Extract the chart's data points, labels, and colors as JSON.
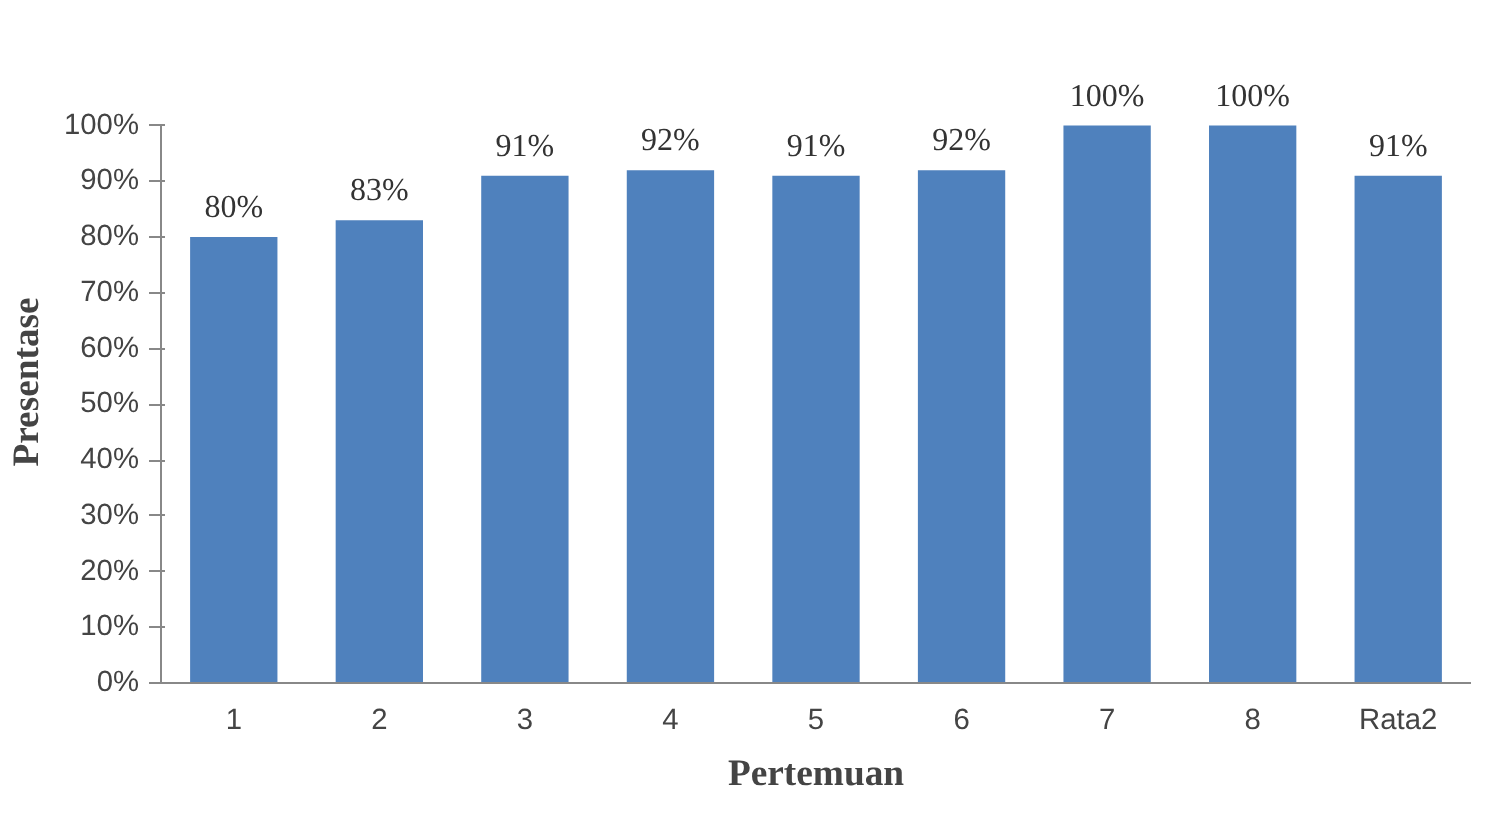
{
  "chart_data": {
    "type": "bar",
    "xlabel": "Pertemuan",
    "ylabel": "Presentase",
    "categories": [
      "1",
      "2",
      "3",
      "4",
      "5",
      "6",
      "7",
      "8",
      "Rata2"
    ],
    "values": [
      80,
      83,
      91,
      92,
      91,
      92,
      100,
      100,
      91
    ],
    "value_labels": [
      "80%",
      "83%",
      "91%",
      "92%",
      "91%",
      "92%",
      "100%",
      "100%",
      "91%"
    ],
    "color": "#4f81bd",
    "ylim": [
      0,
      100
    ],
    "yticks": [
      {
        "value": 0,
        "label": "0%"
      },
      {
        "value": 10,
        "label": "10%"
      },
      {
        "value": 20,
        "label": "20%"
      },
      {
        "value": 30,
        "label": "30%"
      },
      {
        "value": 40,
        "label": "40%"
      },
      {
        "value": 50,
        "label": "50%"
      },
      {
        "value": 60,
        "label": "60%"
      },
      {
        "value": 70,
        "label": "70%"
      },
      {
        "value": 80,
        "label": "80%"
      },
      {
        "value": 90,
        "label": "90%"
      },
      {
        "value": 100,
        "label": "100%"
      }
    ],
    "grid": false
  }
}
